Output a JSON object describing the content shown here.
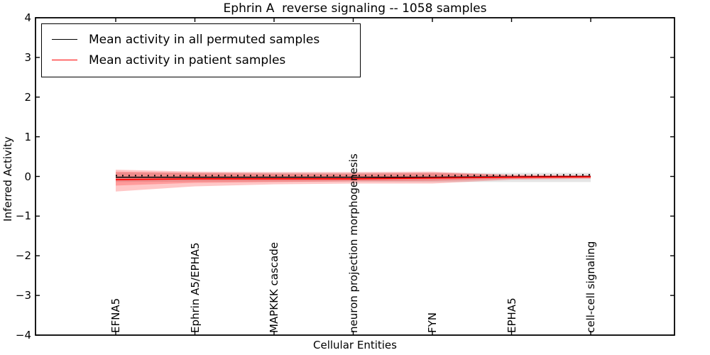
{
  "figure": {
    "background": "#ffffff",
    "frame_color": "#000000"
  },
  "chart_data": {
    "type": "line",
    "title": "Ephrin A  reverse signaling -- 1058 samples",
    "xlabel": "Cellular Entities",
    "ylabel": "Inferred Activity",
    "ylim": [
      -4,
      4
    ],
    "ytick_labels": [
      "4",
      "3",
      "2",
      "1",
      "0",
      "−1",
      "−2",
      "−3",
      "−4"
    ],
    "ytick_values": [
      4,
      3,
      2,
      1,
      0,
      -1,
      -2,
      -3,
      -4
    ],
    "grid": false,
    "legend_position": "upper-left",
    "categories": [
      "EFNA5",
      "Ephrin A5/EPHA5",
      "MAPKKK cascade",
      "neuron projection morphogenesis",
      "FYN",
      "EPHA5",
      "cell-cell signaling"
    ],
    "series": [
      {
        "name": "Mean activity in all permuted samples",
        "color": "#000000",
        "style": "solid-with-plus-markers",
        "values": [
          -0.02,
          -0.02,
          -0.02,
          -0.02,
          -0.02,
          -0.01,
          0.0
        ]
      },
      {
        "name": "Mean activity in patient samples",
        "color": "#ff0000",
        "style": "solid",
        "values": [
          -0.08,
          -0.06,
          -0.06,
          -0.06,
          -0.04,
          -0.02,
          -0.01
        ]
      }
    ],
    "bands": [
      {
        "name": "permuted-samples-range",
        "color": "#000000",
        "opacity": 0.1,
        "top": [
          0.1,
          0.09,
          0.09,
          0.09,
          0.09,
          0.09,
          0.09
        ],
        "bottom": [
          -0.14,
          -0.13,
          -0.13,
          -0.13,
          -0.14,
          -0.14,
          -0.14
        ]
      },
      {
        "name": "patient-samples-outer-range",
        "color": "#ff0000",
        "opacity": 0.22,
        "top": [
          0.17,
          0.12,
          0.11,
          0.11,
          0.12,
          0.04,
          0.03
        ],
        "bottom": [
          -0.38,
          -0.25,
          -0.2,
          -0.18,
          -0.18,
          -0.08,
          -0.06
        ]
      },
      {
        "name": "patient-samples-inner-range",
        "color": "#ff0000",
        "opacity": 0.22,
        "top": [
          0.12,
          0.09,
          0.07,
          0.07,
          0.09,
          0.03,
          0.02
        ],
        "bottom": [
          -0.23,
          -0.16,
          -0.14,
          -0.12,
          -0.11,
          -0.06,
          -0.04
        ]
      }
    ]
  }
}
